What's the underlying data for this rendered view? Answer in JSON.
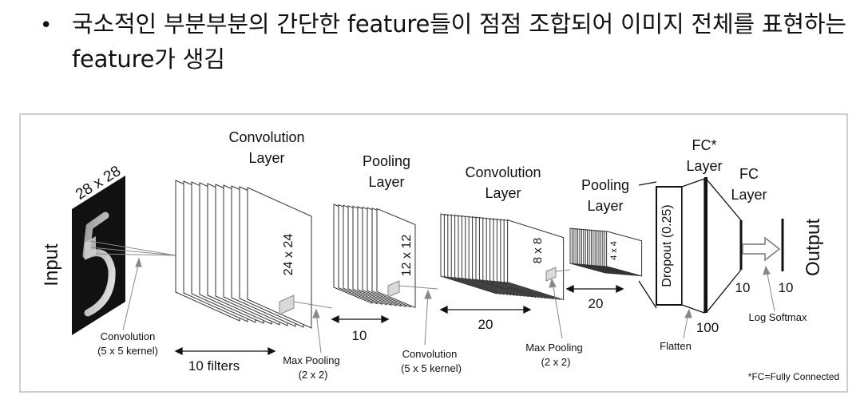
{
  "slide": {
    "bullet_symbol": "•",
    "bullet_text": "국소적인 부분부분의 간단한 feature들이 점점 조합되어 이미지 전체를 표현하는 feature가 생김"
  },
  "diagram": {
    "input_label": "Input",
    "input_size": "28 x 28",
    "conv1": {
      "title_line1": "Convolution",
      "title_line2": "Layer",
      "size": "24 x 24",
      "depth": "10 filters"
    },
    "pool1": {
      "title_line1": "Pooling",
      "title_line2": "Layer",
      "size": "12 x 12",
      "depth": "10"
    },
    "conv2": {
      "title_line1": "Convolution",
      "title_line2": "Layer",
      "size": "8 x 8",
      "depth": "20"
    },
    "pool2": {
      "title_line1": "Pooling",
      "title_line2": "Layer",
      "size": "4 x 4",
      "depth": "20"
    },
    "fc1": {
      "title_line1": "FC*",
      "title_line2": "Layer",
      "dropout": "Dropout (0.25)",
      "units": "100"
    },
    "fc2": {
      "title_line1": "FC",
      "title_line2": "Layer",
      "units": "10"
    },
    "output": {
      "label": "Output",
      "units": "10"
    },
    "annotations": {
      "conv_a_line1": "Convolution",
      "conv_a_line2": "(5 x 5 kernel)",
      "maxpool_a_line1": "Max Pooling",
      "maxpool_a_line2": "(2 x 2)",
      "conv_b_line1": "Convolution",
      "conv_b_line2": "(5 x 5 kernel)",
      "maxpool_b_line1": "Max Pooling",
      "maxpool_b_line2": "(2 x 2)",
      "flatten": "Flatten",
      "log_softmax": "Log Softmax",
      "footnote": "*FC=Fully Connected"
    }
  }
}
